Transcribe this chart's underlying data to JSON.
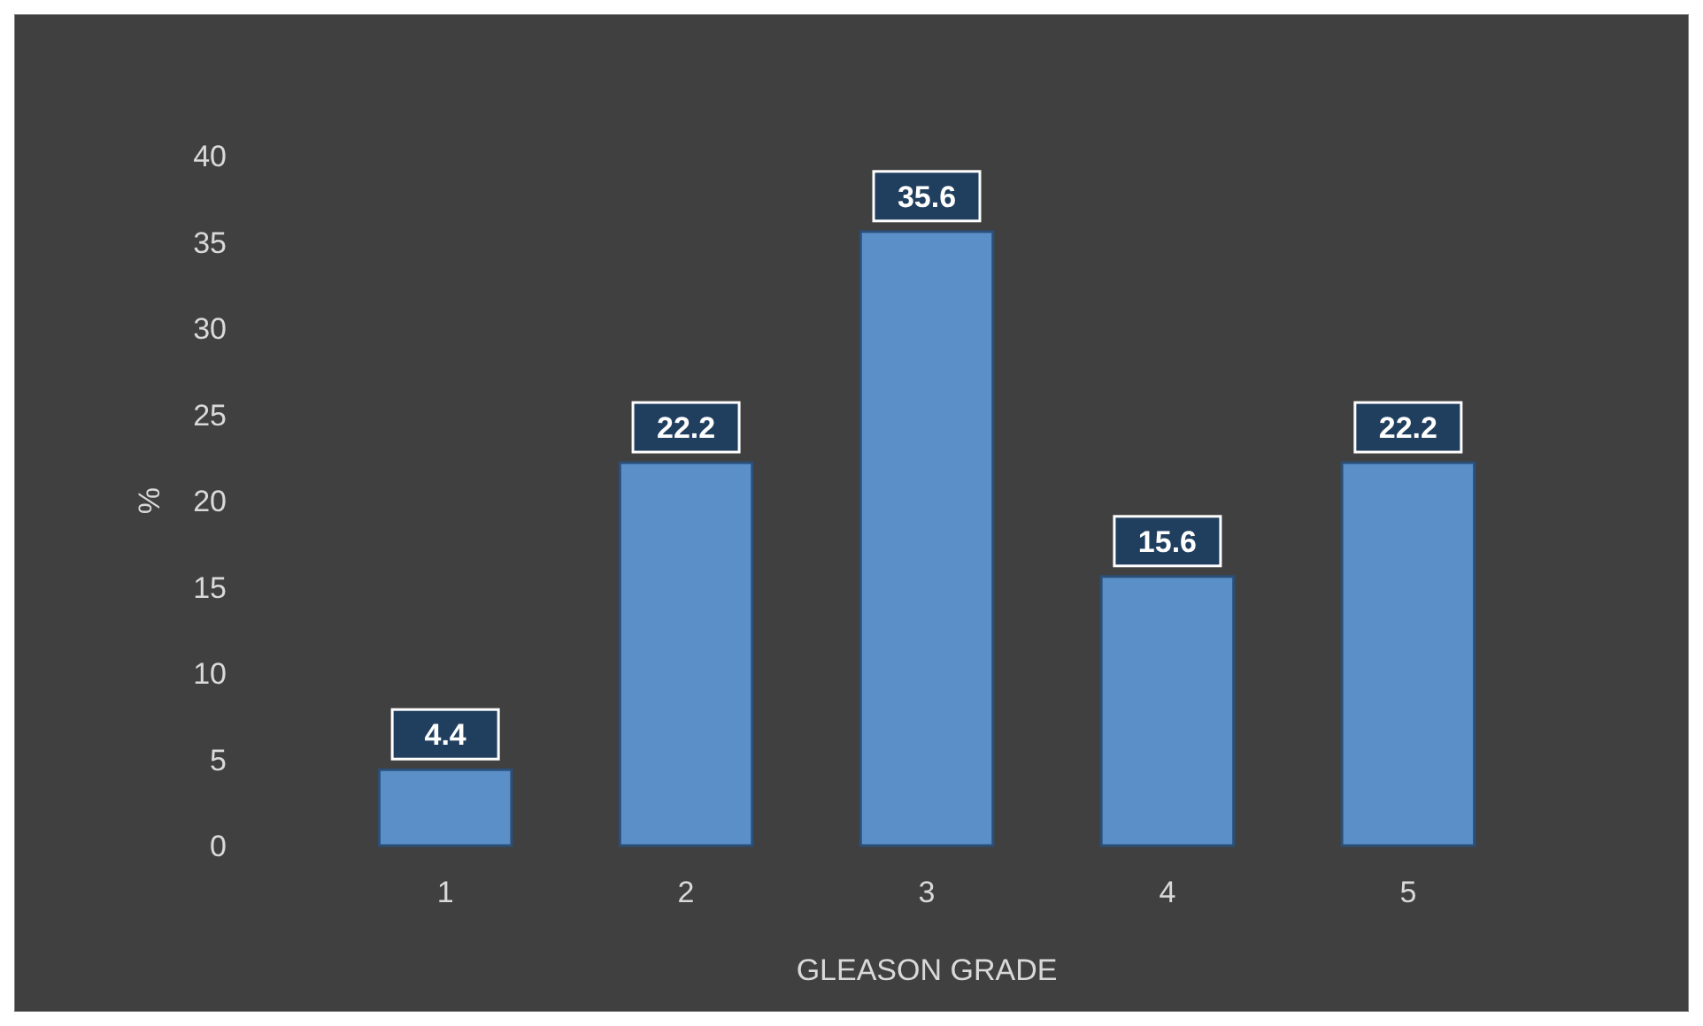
{
  "chart_data": {
    "type": "bar",
    "categories": [
      "1",
      "2",
      "3",
      "4",
      "5"
    ],
    "values": [
      4.4,
      22.2,
      35.6,
      15.6,
      22.2
    ],
    "color": "#5b8fc7",
    "ylim": [
      0,
      40
    ],
    "yticks": [
      0,
      5,
      10,
      15,
      20,
      25,
      30,
      35,
      40
    ],
    "xlabel": "GLEASON GRADE",
    "ylabel": "%",
    "data_labels": true,
    "grid": false
  }
}
